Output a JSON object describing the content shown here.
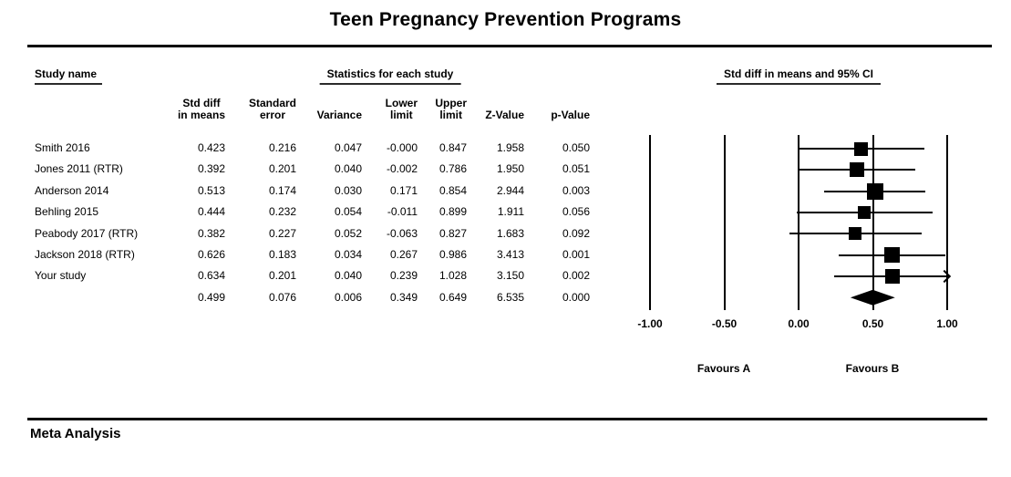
{
  "title": "Teen Pregnancy Prevention Programs",
  "footer": "Meta Analysis",
  "table": {
    "group_headers": {
      "study": "Study name",
      "stats": "Statistics for each study",
      "plot": "Std diff in means and 95% CI"
    },
    "columns": [
      [
        "Std diff",
        "in means"
      ],
      [
        "Standard",
        "error"
      ],
      [
        "Variance"
      ],
      [
        "Lower",
        "limit"
      ],
      [
        "Upper",
        "limit"
      ],
      [
        "Z-Value"
      ],
      [
        "p-Value"
      ]
    ]
  },
  "chart_data": {
    "type": "forest",
    "title": "Teen Pregnancy Prevention Programs",
    "effect_label": "Std diff in means and 95% CI",
    "xlim": [
      -1.0,
      1.0
    ],
    "tick_labels": [
      "-1.00",
      "-0.50",
      "0.00",
      "0.50",
      "1.00"
    ],
    "favours_left": "Favours A",
    "favours_right": "Favours B",
    "studies": [
      {
        "name": "Smith 2016",
        "std_diff": "0.423",
        "standard_error": "0.216",
        "variance": "0.047",
        "lower_limit": "-0.000",
        "upper_limit": "0.847",
        "z_value": "1.958",
        "p_value": "0.050"
      },
      {
        "name": "Jones 2011 (RTR)",
        "std_diff": "0.392",
        "standard_error": "0.201",
        "variance": "0.040",
        "lower_limit": "-0.002",
        "upper_limit": "0.786",
        "z_value": "1.950",
        "p_value": "0.051"
      },
      {
        "name": "Anderson 2014",
        "std_diff": "0.513",
        "standard_error": "0.174",
        "variance": "0.030",
        "lower_limit": "0.171",
        "upper_limit": "0.854",
        "z_value": "2.944",
        "p_value": "0.003"
      },
      {
        "name": "Behling 2015",
        "std_diff": "0.444",
        "standard_error": "0.232",
        "variance": "0.054",
        "lower_limit": "-0.011",
        "upper_limit": "0.899",
        "z_value": "1.911",
        "p_value": "0.056"
      },
      {
        "name": "Peabody 2017 (RTR)",
        "std_diff": "0.382",
        "standard_error": "0.227",
        "variance": "0.052",
        "lower_limit": "-0.063",
        "upper_limit": "0.827",
        "z_value": "1.683",
        "p_value": "0.092"
      },
      {
        "name": "Jackson 2018 (RTR)",
        "std_diff": "0.626",
        "standard_error": "0.183",
        "variance": "0.034",
        "lower_limit": "0.267",
        "upper_limit": "0.986",
        "z_value": "3.413",
        "p_value": "0.001"
      },
      {
        "name": "Your study",
        "std_diff": "0.634",
        "standard_error": "0.201",
        "variance": "0.040",
        "lower_limit": "0.239",
        "upper_limit": "1.028",
        "z_value": "3.150",
        "p_value": "0.002"
      }
    ],
    "overall": {
      "name": "",
      "std_diff": "0.499",
      "standard_error": "0.076",
      "variance": "0.006",
      "lower_limit": "0.349",
      "upper_limit": "0.649",
      "z_value": "6.535",
      "p_value": "0.000"
    }
  }
}
